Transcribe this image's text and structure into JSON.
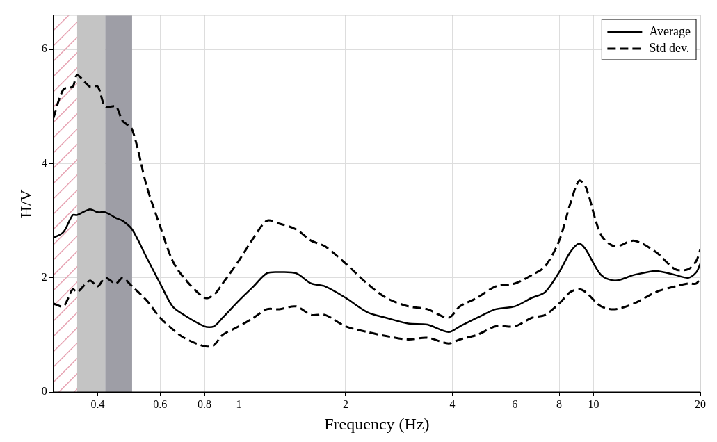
{
  "chart_data": {
    "type": "line",
    "x_label": "Frequency (Hz)",
    "y_label": "H/V",
    "log": "x",
    "grid": true,
    "legend": "upper right",
    "xlim": [
      0.3,
      20
    ],
    "ylim": [
      0,
      6.6
    ],
    "xticks": [
      0.4,
      0.6,
      0.8,
      1,
      2,
      4,
      6,
      8,
      10,
      20
    ],
    "yticks": [
      0,
      2,
      4,
      6
    ],
    "bands": [
      {
        "from": 0.35,
        "to": 0.42,
        "color": "#c4c4c4"
      },
      {
        "from": 0.42,
        "to": 0.5,
        "color": "#9e9ea6"
      }
    ],
    "hatch": {
      "from": 0.3,
      "to": 0.35,
      "color": "#e6a0b0"
    },
    "x": [
      0.3,
      0.32,
      0.34,
      0.35,
      0.38,
      0.4,
      0.42,
      0.45,
      0.47,
      0.5,
      0.55,
      0.6,
      0.65,
      0.7,
      0.8,
      0.85,
      0.9,
      1.0,
      1.1,
      1.2,
      1.3,
      1.45,
      1.6,
      1.75,
      2.0,
      2.3,
      2.6,
      3.0,
      3.4,
      3.9,
      4.2,
      4.7,
      5.3,
      6.0,
      6.7,
      7.3,
      8.0,
      8.6,
      9.1,
      9.5,
      10.5,
      11.5,
      13,
      15,
      17,
      18.5,
      19.5,
      20
    ],
    "series": [
      {
        "name": "Average",
        "color": "#000000",
        "line_style": "solid",
        "values": [
          2.7,
          2.8,
          3.1,
          3.1,
          3.2,
          3.15,
          3.15,
          3.05,
          3.0,
          2.85,
          2.35,
          1.9,
          1.5,
          1.35,
          1.15,
          1.15,
          1.3,
          1.6,
          1.85,
          2.08,
          2.1,
          2.08,
          1.9,
          1.85,
          1.65,
          1.4,
          1.3,
          1.2,
          1.18,
          1.05,
          1.15,
          1.3,
          1.45,
          1.5,
          1.65,
          1.75,
          2.1,
          2.45,
          2.6,
          2.5,
          2.05,
          1.95,
          2.05,
          2.12,
          2.05,
          2.0,
          2.1,
          2.25
        ]
      },
      {
        "name": "Std dev.",
        "color": "#000000",
        "line_style": "dashed",
        "values": [
          4.8,
          5.3,
          5.35,
          5.55,
          5.35,
          5.35,
          5.0,
          5.0,
          4.75,
          4.6,
          3.6,
          2.9,
          2.3,
          2.0,
          1.65,
          1.7,
          1.9,
          2.3,
          2.7,
          3.0,
          2.95,
          2.85,
          2.65,
          2.55,
          2.25,
          1.9,
          1.65,
          1.5,
          1.45,
          1.3,
          1.5,
          1.65,
          1.85,
          1.9,
          2.05,
          2.2,
          2.65,
          3.3,
          3.7,
          3.6,
          2.75,
          2.55,
          2.65,
          2.45,
          2.15,
          2.15,
          2.3,
          2.5
        ]
      },
      {
        "name": "Std dev.",
        "color": "#000000",
        "line_style": "dashed",
        "values": [
          1.55,
          1.5,
          1.8,
          1.75,
          1.95,
          1.85,
          2.0,
          1.9,
          2.0,
          1.85,
          1.6,
          1.3,
          1.1,
          0.95,
          0.8,
          0.82,
          1.0,
          1.15,
          1.3,
          1.45,
          1.45,
          1.5,
          1.35,
          1.35,
          1.15,
          1.05,
          0.98,
          0.92,
          0.95,
          0.85,
          0.92,
          1.0,
          1.15,
          1.15,
          1.3,
          1.35,
          1.55,
          1.75,
          1.8,
          1.75,
          1.5,
          1.45,
          1.55,
          1.75,
          1.85,
          1.9,
          1.9,
          2.0
        ]
      }
    ]
  }
}
